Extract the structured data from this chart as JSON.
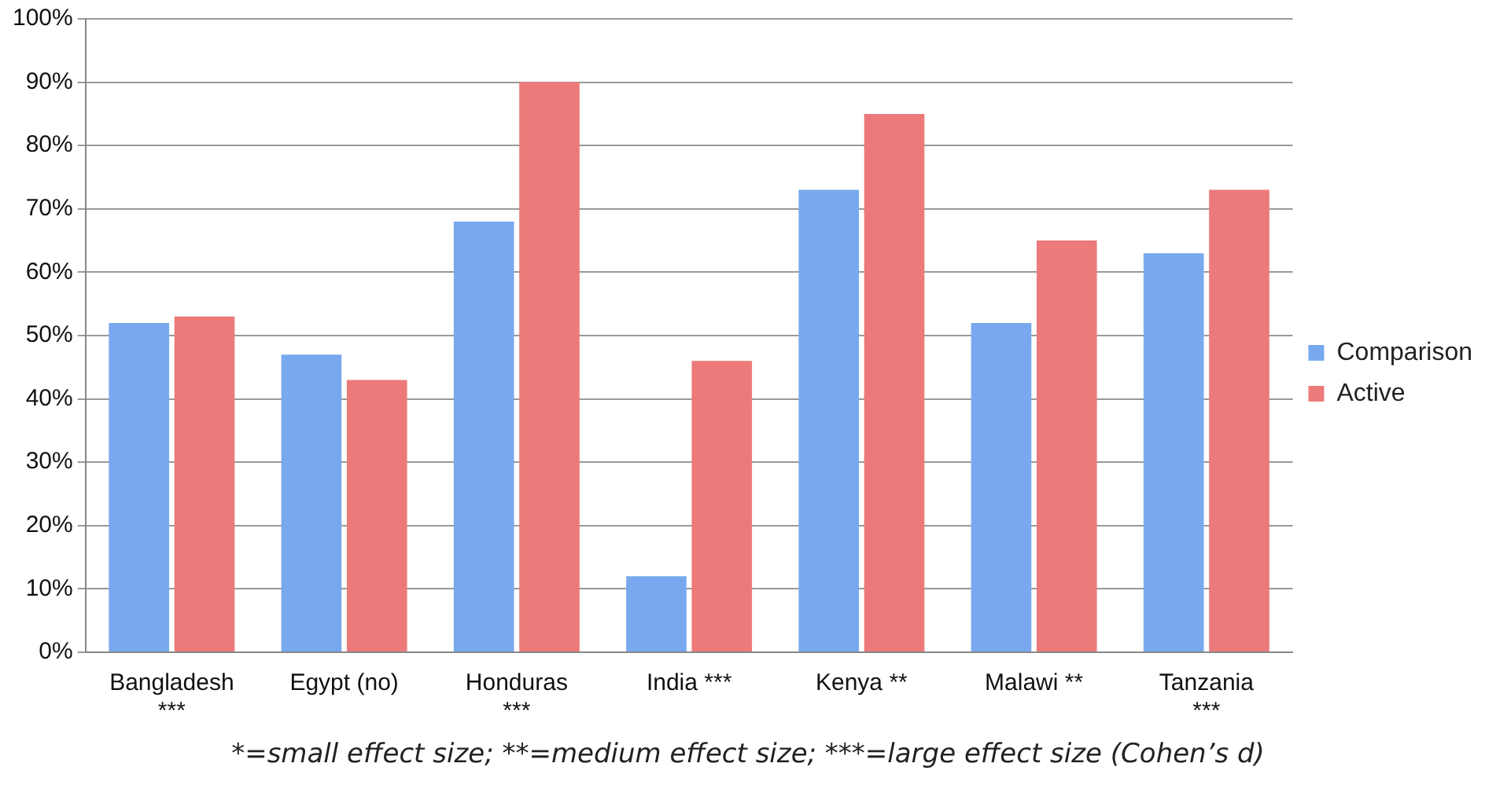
{
  "chart_data": {
    "type": "bar",
    "categories": [
      "Bangladesh ***",
      "Egypt (no)",
      "Honduras ***",
      "India ***",
      "Kenya **",
      "Malawi **",
      "Tanzania ***"
    ],
    "series": [
      {
        "name": "Comparison",
        "color": "#78a9ee",
        "values": [
          52,
          47,
          68,
          12,
          73,
          52,
          63
        ]
      },
      {
        "name": "Active",
        "color": "#ec7a7a",
        "values": [
          53,
          43,
          90,
          46,
          85,
          65,
          73
        ]
      }
    ],
    "ylim": [
      0,
      100
    ],
    "yticks": [
      {
        "value": 0,
        "label": "0%"
      },
      {
        "value": 10,
        "label": "10%"
      },
      {
        "value": 20,
        "label": "20%"
      },
      {
        "value": 30,
        "label": "30%"
      },
      {
        "value": 40,
        "label": "40%"
      },
      {
        "value": 50,
        "label": "50%"
      },
      {
        "value": 60,
        "label": "60%"
      },
      {
        "value": 70,
        "label": "70%"
      },
      {
        "value": 80,
        "label": "80%"
      },
      {
        "value": 90,
        "label": "90%"
      },
      {
        "value": 100,
        "label": "100%"
      }
    ],
    "grid": "y",
    "legend": "right",
    "annotations": [
      "*=small effect size; **=medium effect size; ***=large effect size (Cohen’s d)"
    ]
  }
}
